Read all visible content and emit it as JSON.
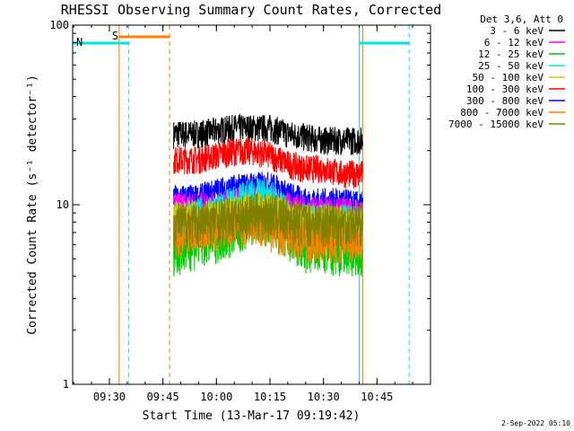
{
  "chart_data": {
    "type": "line",
    "title": "RHESSI Observing Summary Count Rates, Corrected",
    "xlabel": "Start Time (13-Mar-17 09:19:42)",
    "ylabel": "Corrected Count Rate (s⁻¹ detector⁻¹)",
    "yscale": "log",
    "ylim": [
      1,
      100
    ],
    "xlim": [
      "09:19:42",
      "11:00:00"
    ],
    "x_ticks": [
      "09:30",
      "09:45",
      "10:00",
      "10:15",
      "10:30",
      "10:45"
    ],
    "y_ticks": [
      "1",
      "10",
      "100"
    ],
    "grid": false,
    "legend": {
      "placement": "top-right",
      "header": "Det 3,6, Att 0",
      "entries": [
        {
          "name": "3 - 6 keV",
          "color": "#000000"
        },
        {
          "name": "6 - 12 keV",
          "color": "#ff00ff"
        },
        {
          "name": "12 - 25 keV",
          "color": "#00cc00"
        },
        {
          "name": "25 - 50 keV",
          "color": "#00e5e5"
        },
        {
          "name": "50 - 100 keV",
          "color": "#cccc00"
        },
        {
          "name": "100 - 300 keV",
          "color": "#ff0000"
        },
        {
          "name": "300 - 800 keV",
          "color": "#0000ff"
        },
        {
          "name": "800 - 7000 keV",
          "color": "#ff8000"
        },
        {
          "name": "7000 - 15000 keV",
          "color": "#808000"
        }
      ]
    },
    "data_window": {
      "start": "09:48:00",
      "end": "10:41:00"
    },
    "series": [
      {
        "name": "3 - 6 keV",
        "color": "#000000",
        "x": [
          "09:48",
          "09:55",
          "10:00",
          "10:05",
          "10:10",
          "10:15",
          "10:20",
          "10:25",
          "10:30",
          "10:35",
          "10:41"
        ],
        "y": [
          25,
          25,
          26,
          27,
          27,
          27,
          25,
          24,
          23,
          23,
          23
        ]
      },
      {
        "name": "100 - 300 keV",
        "color": "#ff0000",
        "x": [
          "09:48",
          "09:55",
          "10:00",
          "10:05",
          "10:10",
          "10:15",
          "10:20",
          "10:25",
          "10:30",
          "10:35",
          "10:41"
        ],
        "y": [
          18,
          18,
          19,
          20,
          20,
          19,
          17,
          16,
          16,
          15,
          15
        ]
      },
      {
        "name": "300 - 800 keV",
        "color": "#0000ff",
        "x": [
          "09:48",
          "09:55",
          "10:00",
          "10:05",
          "10:10",
          "10:15",
          "10:20",
          "10:25",
          "10:30",
          "10:35",
          "10:41"
        ],
        "y": [
          11,
          11,
          12,
          12.5,
          13,
          13,
          11.5,
          10.5,
          10.5,
          10.5,
          10
        ]
      },
      {
        "name": "6 - 12 keV",
        "color": "#ff00ff",
        "x": [
          "09:48",
          "09:55",
          "10:00",
          "10:05",
          "10:10",
          "10:15",
          "10:20",
          "10:25",
          "10:30",
          "10:35",
          "10:41"
        ],
        "y": [
          10,
          10,
          10,
          10.5,
          11,
          11,
          10,
          9.5,
          9.5,
          9.5,
          9
        ]
      },
      {
        "name": "25 - 50 keV",
        "color": "#00e5e5",
        "x": [
          "09:48",
          "09:55",
          "10:00",
          "10:05",
          "10:10",
          "10:15",
          "10:20",
          "10:25",
          "10:30",
          "10:35",
          "10:41"
        ],
        "y": [
          8,
          8.5,
          9,
          10,
          11,
          11,
          8.5,
          8,
          8,
          8,
          7.5
        ]
      },
      {
        "name": "50 - 100 keV",
        "color": "#cccc00",
        "x": [
          "09:48",
          "09:55",
          "10:00",
          "10:05",
          "10:10",
          "10:15",
          "10:20",
          "10:25",
          "10:30",
          "10:35",
          "10:41"
        ],
        "y": [
          9,
          9,
          9,
          9.5,
          10,
          10,
          9,
          8.5,
          8.5,
          8.5,
          8
        ]
      },
      {
        "name": "12 - 25 keV",
        "color": "#00cc00",
        "x": [
          "09:48",
          "09:55",
          "10:00",
          "10:05",
          "10:10",
          "10:15",
          "10:20",
          "10:25",
          "10:30",
          "10:35",
          "10:41"
        ],
        "y": [
          5.5,
          6,
          6.5,
          7,
          8,
          8,
          6.5,
          5.5,
          5.5,
          5.5,
          5.5
        ]
      },
      {
        "name": "800 - 7000 keV",
        "color": "#ff8000",
        "x": [
          "09:48",
          "09:55",
          "10:00",
          "10:05",
          "10:10",
          "10:15",
          "10:20",
          "10:25",
          "10:30",
          "10:35",
          "10:41"
        ],
        "y": [
          7,
          7.5,
          7.5,
          8,
          8,
          7.5,
          7,
          6.5,
          6.5,
          6.5,
          6.5
        ]
      },
      {
        "name": "7000 - 15000 keV",
        "color": "#808000",
        "x": [
          "09:48",
          "09:55",
          "10:00",
          "10:05",
          "10:10",
          "10:15",
          "10:20",
          "10:25",
          "10:30",
          "10:35",
          "10:41"
        ],
        "y": [
          8,
          8,
          8.5,
          8.5,
          9,
          9,
          8.5,
          8,
          8,
          8,
          8
        ]
      }
    ],
    "annotations": [
      {
        "label": "S",
        "color": "#ff8000",
        "kind": "saa",
        "start": "09:32:45",
        "end": "09:46:52"
      },
      {
        "label": "N",
        "color": "#00e5e5",
        "kind": "night",
        "start": "09:19:42",
        "end": "09:35:27"
      },
      {
        "label": "",
        "color": "#00e5e5",
        "kind": "night",
        "start": "10:40:00",
        "end": "10:54:00"
      }
    ],
    "markers": [
      {
        "time": "09:32:45",
        "color": "#ff8000",
        "style": "solid"
      },
      {
        "time": "09:35:27",
        "color": "#00e5e5",
        "style": "dashed"
      },
      {
        "time": "09:46:52",
        "color": "#ff8000",
        "style": "dashed"
      },
      {
        "time": "09:19:42",
        "color": "#00e5e5",
        "style": "solid"
      },
      {
        "time": "10:40:00",
        "color": "#00e5e5",
        "style": "solid"
      },
      {
        "time": "10:41:00",
        "color": "#ff8000",
        "style": "solid"
      },
      {
        "time": "10:54:00",
        "color": "#00e5e5",
        "style": "dashed"
      }
    ]
  },
  "footer": {
    "date": "2-Sep-2022 05:10"
  }
}
